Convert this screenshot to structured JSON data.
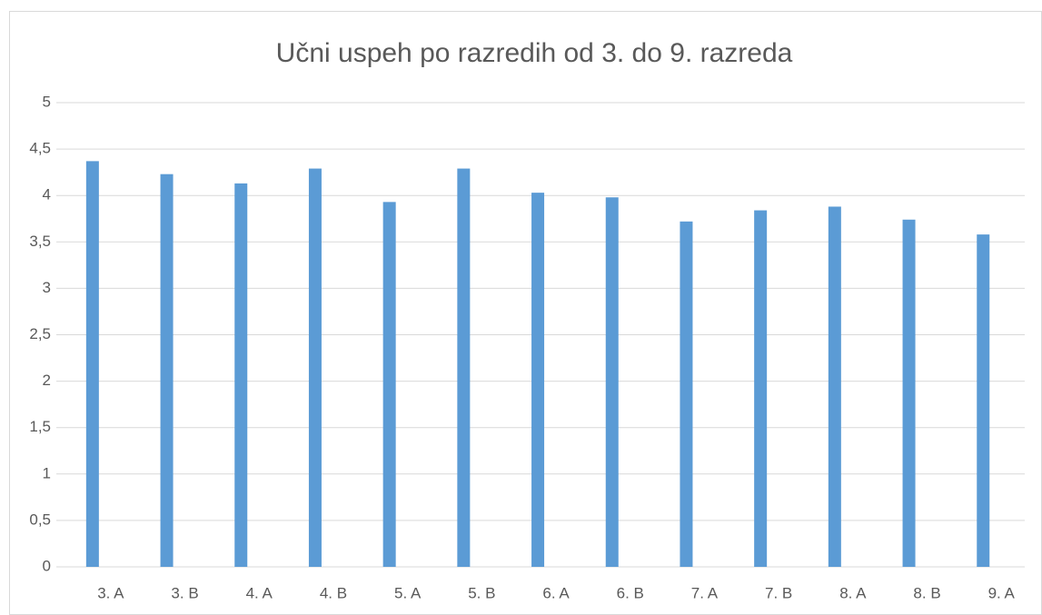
{
  "chart_data": {
    "type": "bar",
    "title": "Učni uspeh po razredih od 3. do 9. razreda",
    "categories": [
      "3. A",
      "3. B",
      "4. A",
      "4. B",
      "5. A",
      "5. B",
      "6. A",
      "6. B",
      "7. A",
      "7. B",
      "8. A",
      "8. B",
      "9. A"
    ],
    "values": [
      4.37,
      4.23,
      4.13,
      4.29,
      3.93,
      4.29,
      4.03,
      3.98,
      3.72,
      3.84,
      3.88,
      3.74,
      3.58
    ],
    "color": "#5b9bd5",
    "ylim": [
      0,
      5
    ],
    "yticks": [
      0,
      {
        "value": 0.5,
        "label": "0,5"
      },
      1,
      {
        "value": 1.5,
        "label": "1,5"
      },
      2,
      {
        "value": 2.5,
        "label": "2,5"
      },
      3,
      {
        "value": 3.5,
        "label": "3,5"
      },
      4,
      {
        "value": 4.5,
        "label": "4,5"
      },
      5
    ],
    "grid": true
  }
}
